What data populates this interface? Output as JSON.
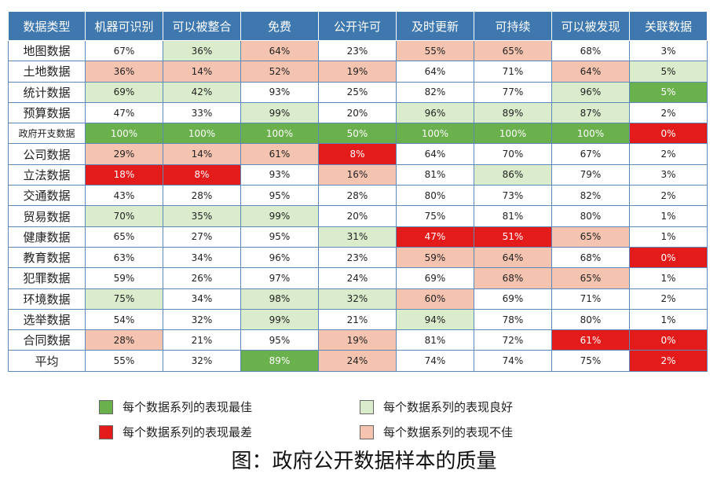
{
  "colors": {
    "header_bg": "#3f78ae",
    "best": "#6ab04c",
    "good": "#daeccc",
    "worst": "#e31b1b",
    "poor": "#f5c4b0",
    "plain": "#ffffff"
  },
  "table": {
    "columns": [
      "数据类型",
      "机器可识别",
      "可以被整合",
      "免费",
      "公开许可",
      "及时更新",
      "可持续",
      "可以被发现",
      "关联数据"
    ],
    "rows": [
      {
        "label": "地图数据",
        "values": [
          "67%",
          "36%",
          "64%",
          "23%",
          "55%",
          "65%",
          "68%",
          "3%"
        ],
        "levels": [
          "",
          "good",
          "poor",
          "",
          "poor",
          "poor",
          "",
          ""
        ]
      },
      {
        "label": "土地数据",
        "values": [
          "36%",
          "14%",
          "52%",
          "19%",
          "64%",
          "71%",
          "64%",
          "5%"
        ],
        "levels": [
          "poor",
          "poor",
          "poor",
          "poor",
          "",
          "",
          "poor",
          "good"
        ]
      },
      {
        "label": "统计数据",
        "values": [
          "69%",
          "42%",
          "93%",
          "25%",
          "82%",
          "77%",
          "96%",
          "5%"
        ],
        "levels": [
          "good",
          "good",
          "",
          "",
          "",
          "",
          "good",
          "best"
        ]
      },
      {
        "label": "预算数据",
        "values": [
          "47%",
          "33%",
          "99%",
          "20%",
          "96%",
          "89%",
          "87%",
          "2%"
        ],
        "levels": [
          "",
          "",
          "good",
          "",
          "good",
          "good",
          "good",
          ""
        ]
      },
      {
        "label": "政府开支数据",
        "values": [
          "100%",
          "100%",
          "100%",
          "50%",
          "100%",
          "100%",
          "100%",
          "0%"
        ],
        "levels": [
          "best",
          "best",
          "best",
          "best",
          "best",
          "best",
          "best",
          "worst"
        ]
      },
      {
        "label": "公司数据",
        "values": [
          "29%",
          "14%",
          "61%",
          "8%",
          "64%",
          "70%",
          "67%",
          "2%"
        ],
        "levels": [
          "poor",
          "poor",
          "poor",
          "worst",
          "",
          "",
          "",
          ""
        ]
      },
      {
        "label": "立法数据",
        "values": [
          "18%",
          "8%",
          "93%",
          "16%",
          "81%",
          "86%",
          "79%",
          "3%"
        ],
        "levels": [
          "worst",
          "worst",
          "",
          "poor",
          "",
          "good",
          "",
          ""
        ]
      },
      {
        "label": "交通数据",
        "values": [
          "43%",
          "28%",
          "95%",
          "28%",
          "80%",
          "73%",
          "82%",
          "2%"
        ],
        "levels": [
          "",
          "",
          "",
          "",
          "",
          "",
          "",
          ""
        ]
      },
      {
        "label": "贸易数据",
        "values": [
          "70%",
          "35%",
          "99%",
          "20%",
          "75%",
          "81%",
          "80%",
          "1%"
        ],
        "levels": [
          "good",
          "good",
          "good",
          "",
          "",
          "",
          "",
          ""
        ]
      },
      {
        "label": "健康数据",
        "values": [
          "65%",
          "27%",
          "95%",
          "31%",
          "47%",
          "51%",
          "65%",
          "1%"
        ],
        "levels": [
          "",
          "",
          "",
          "good",
          "worst",
          "worst",
          "poor",
          ""
        ]
      },
      {
        "label": "教育数据",
        "values": [
          "63%",
          "34%",
          "96%",
          "23%",
          "59%",
          "64%",
          "68%",
          "0%"
        ],
        "levels": [
          "",
          "",
          "",
          "",
          "poor",
          "poor",
          "",
          "worst"
        ]
      },
      {
        "label": "犯罪数据",
        "values": [
          "59%",
          "26%",
          "97%",
          "24%",
          "69%",
          "68%",
          "65%",
          "1%"
        ],
        "levels": [
          "",
          "",
          "",
          "",
          "",
          "poor",
          "poor",
          ""
        ]
      },
      {
        "label": "环境数据",
        "values": [
          "75%",
          "34%",
          "98%",
          "32%",
          "60%",
          "69%",
          "71%",
          "2%"
        ],
        "levels": [
          "good",
          "",
          "good",
          "good",
          "poor",
          "",
          "",
          ""
        ]
      },
      {
        "label": "选举数据",
        "values": [
          "54%",
          "32%",
          "99%",
          "21%",
          "94%",
          "78%",
          "80%",
          "1%"
        ],
        "levels": [
          "",
          "",
          "good",
          "",
          "good",
          "",
          "",
          ""
        ]
      },
      {
        "label": "合同数据",
        "values": [
          "28%",
          "21%",
          "95%",
          "19%",
          "81%",
          "72%",
          "61%",
          "0%"
        ],
        "levels": [
          "poor",
          "",
          "",
          "poor",
          "",
          "",
          "worst",
          "worst"
        ]
      },
      {
        "label": "平均",
        "values": [
          "55%",
          "32%",
          "89%",
          "24%",
          "74%",
          "74%",
          "75%",
          "2%"
        ],
        "levels": [
          "",
          "",
          "best",
          "poor",
          "",
          "",
          "",
          "worst"
        ]
      }
    ]
  },
  "legend": {
    "best": "每个数据系列的表现最佳",
    "good": "每个数据系列的表现良好",
    "worst": "每个数据系列的表现最差",
    "poor": "每个数据系列的表现不佳"
  },
  "caption": "图：政府公开数据样本的质量"
}
